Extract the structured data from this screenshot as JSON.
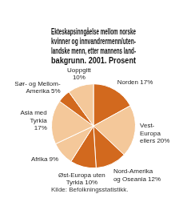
{
  "chart_data": {
    "type": "pie",
    "title": "Ekteskapsinngåelse mellom norske\nkvinner og innvandrermenn/uten-\nlandske menn, etter mannens land-\nbakgrunn. 2001. Prosent",
    "annotations": [
      "Kilde: Befolkningsstatistikk."
    ],
    "categories": [
      "Norden 17%",
      "Vest-\nEuropa\nellers 20%",
      "Nord-Amerika\nog Oseania 12%",
      "Øst-Europa uten\nTyrkia 10%",
      "Afrika 9%",
      "Asia med\nTyrkia\n17%",
      "Sør- og Mellom-\nAmerika 5%",
      "Uoppgitt\n10%"
    ],
    "values": [
      17,
      20,
      12,
      10,
      9,
      17,
      5,
      10
    ],
    "colors": [
      "#D2691E",
      "#F4C89A",
      "#D2691E",
      "#D2691E",
      "#F4C89A",
      "#F4C89A",
      "#D2691E",
      "#F4C89A"
    ]
  }
}
